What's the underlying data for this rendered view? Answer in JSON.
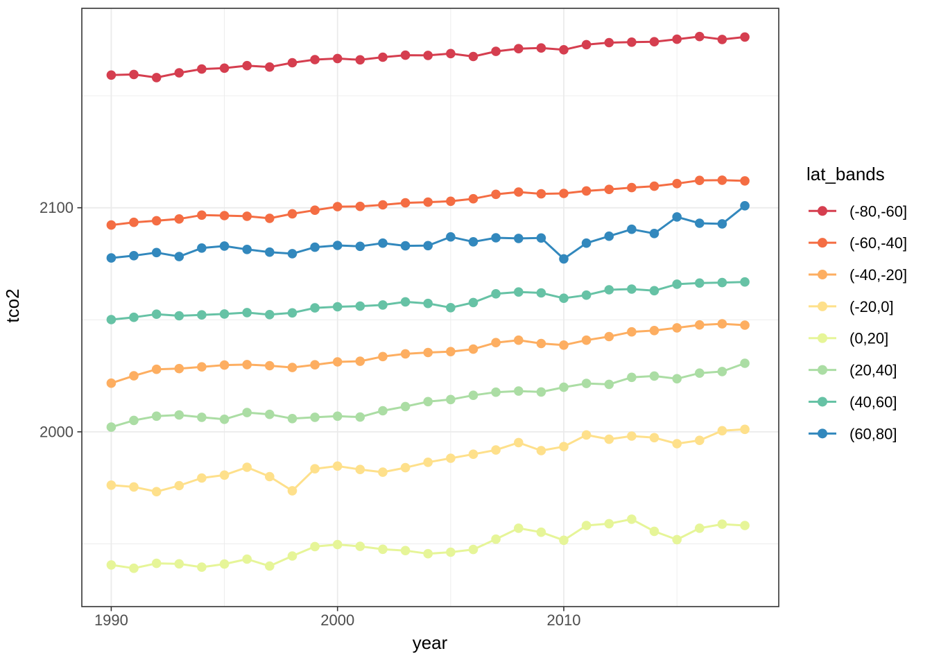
{
  "figure": {
    "background": "#ffffff",
    "panel_border_color": "#333333",
    "grid_color": "#ebebeb",
    "tick_color": "#333333",
    "tick_label_color": "#4d4d4d"
  },
  "chart_data": {
    "type": "line",
    "title": "",
    "xlabel": "year",
    "ylabel": "tco2",
    "legend_title": "lat_bands",
    "legend_position": "right",
    "grid": true,
    "x_range": [
      1988.7,
      2019.5
    ],
    "y_range": [
      1922,
      2189
    ],
    "x_major_ticks": [
      1990,
      2000,
      2010
    ],
    "x_minor_gridlines": [
      1995,
      2005,
      2015
    ],
    "y_major_ticks": [
      2100,
      2000
    ],
    "y_minor_gridlines": [
      2150,
      2050,
      1950
    ],
    "x": [
      1990,
      1991,
      1992,
      1993,
      1994,
      1995,
      1996,
      1997,
      1998,
      1999,
      2000,
      2001,
      2002,
      2003,
      2004,
      2005,
      2006,
      2007,
      2008,
      2009,
      2010,
      2011,
      2012,
      2013,
      2014,
      2015,
      2016,
      2017,
      2018
    ],
    "series": [
      {
        "name": "(-80,-60]",
        "color": "#d53e4f",
        "values": [
          2159.2,
          2159.5,
          2158.1,
          2160.2,
          2161.9,
          2162.3,
          2163.4,
          2162.8,
          2164.7,
          2166.1,
          2166.6,
          2166.0,
          2167.2,
          2168.1,
          2168.0,
          2168.8,
          2167.5,
          2169.8,
          2171.0,
          2171.3,
          2170.5,
          2172.8,
          2173.7,
          2173.9,
          2174.1,
          2175.2,
          2176.4,
          2175.1,
          2176.2
        ]
      },
      {
        "name": "(-60,-40]",
        "color": "#f46d43",
        "values": [
          2092.3,
          2093.5,
          2094.2,
          2095.0,
          2096.7,
          2096.5,
          2096.2,
          2095.3,
          2097.3,
          2098.9,
          2100.5,
          2100.6,
          2101.3,
          2102.2,
          2102.5,
          2102.9,
          2104.0,
          2106.0,
          2107.0,
          2106.2,
          2106.4,
          2107.5,
          2108.2,
          2109.0,
          2109.6,
          2110.8,
          2112.2,
          2112.3,
          2112.0
        ]
      },
      {
        "name": "(-40,-20]",
        "color": "#fdae61",
        "values": [
          2021.7,
          2025.0,
          2027.9,
          2028.2,
          2029.0,
          2029.8,
          2030.0,
          2029.5,
          2028.7,
          2029.9,
          2031.2,
          2031.5,
          2033.6,
          2034.8,
          2035.4,
          2035.8,
          2036.9,
          2039.8,
          2040.9,
          2039.4,
          2038.7,
          2040.9,
          2042.5,
          2044.6,
          2045.2,
          2046.4,
          2047.7,
          2048.2,
          2047.6
        ]
      },
      {
        "name": "(-20,0]",
        "color": "#fee08b",
        "values": [
          1976.2,
          1975.4,
          1973.3,
          1976.0,
          1979.4,
          1980.7,
          1984.2,
          1980.0,
          1973.7,
          1983.5,
          1984.7,
          1983.2,
          1982.0,
          1984.0,
          1986.4,
          1988.2,
          1990.0,
          1991.9,
          1995.2,
          1991.6,
          1993.4,
          1998.6,
          1996.7,
          1998.1,
          1997.4,
          1994.7,
          1996.2,
          2000.5,
          2001.1
        ]
      },
      {
        "name": "(0,20]",
        "color": "#e6f598",
        "values": [
          1940.6,
          1939.1,
          1941.3,
          1941.1,
          1939.6,
          1941.0,
          1943.2,
          1940.1,
          1944.6,
          1948.8,
          1949.7,
          1948.9,
          1947.6,
          1947.0,
          1945.6,
          1946.3,
          1947.5,
          1952.1,
          1957.0,
          1955.2,
          1951.6,
          1958.2,
          1959.0,
          1961.0,
          1955.6,
          1951.9,
          1957.0,
          1958.8,
          1958.2
        ]
      },
      {
        "name": "(20,40]",
        "color": "#abdda4",
        "values": [
          2002.1,
          2005.1,
          2007.0,
          2007.5,
          2006.5,
          2005.6,
          2008.6,
          2007.8,
          2005.9,
          2006.5,
          2007.0,
          2006.6,
          2009.4,
          2011.3,
          2013.5,
          2014.4,
          2016.3,
          2017.7,
          2018.2,
          2017.8,
          2019.9,
          2021.6,
          2021.2,
          2024.3,
          2024.9,
          2023.7,
          2026.2,
          2026.9,
          2030.6
        ]
      },
      {
        "name": "(40,60]",
        "color": "#66c2a5",
        "values": [
          2050.1,
          2051.1,
          2052.5,
          2051.8,
          2052.2,
          2052.6,
          2053.2,
          2052.3,
          2053.1,
          2055.3,
          2055.8,
          2056.1,
          2056.6,
          2058.0,
          2057.3,
          2055.4,
          2057.7,
          2061.6,
          2062.4,
          2062.0,
          2059.6,
          2061.0,
          2063.4,
          2063.7,
          2063.0,
          2065.9,
          2066.4,
          2066.6,
          2066.9
        ]
      },
      {
        "name": "(60,80]",
        "color": "#3288bd",
        "values": [
          2077.6,
          2078.6,
          2080.0,
          2078.2,
          2082.0,
          2082.9,
          2081.4,
          2080.2,
          2079.5,
          2082.4,
          2083.2,
          2082.8,
          2084.2,
          2083.0,
          2083.1,
          2087.0,
          2084.8,
          2086.6,
          2086.3,
          2086.5,
          2077.2,
          2084.2,
          2087.3,
          2090.4,
          2088.5,
          2095.9,
          2093.1,
          2092.8,
          2100.9
        ]
      }
    ]
  }
}
